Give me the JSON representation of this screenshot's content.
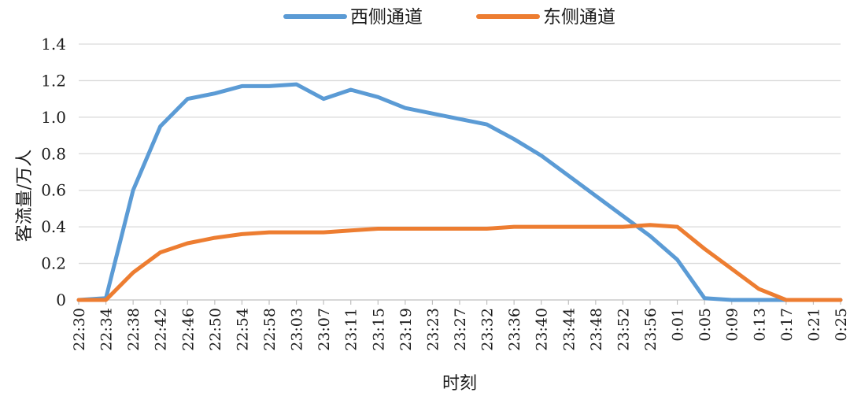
{
  "chart_data": {
    "type": "line",
    "title": "",
    "xlabel": "时刻",
    "ylabel": "客流量/万人",
    "ylim": [
      0,
      1.4
    ],
    "yticks": [
      "0",
      "0.2",
      "0.4",
      "0.6",
      "0.8",
      "1.0",
      "1.2",
      "1.4"
    ],
    "grid": true,
    "legend_position": "top",
    "categories": [
      "22:30",
      "22:34",
      "22:38",
      "22:42",
      "22:46",
      "22:50",
      "22:54",
      "22:58",
      "23:03",
      "23:07",
      "23:11",
      "23:15",
      "23:19",
      "23:23",
      "23:27",
      "23:32",
      "23:36",
      "23:40",
      "23:44",
      "23:48",
      "23:52",
      "23:56",
      "0:01",
      "0:05",
      "0:09",
      "0:13",
      "0:17",
      "0:21",
      "0:25"
    ],
    "series": [
      {
        "name": "西侧通道",
        "color": "#5B9BD5",
        "values": [
          0,
          0.01,
          0.6,
          0.95,
          1.1,
          1.13,
          1.17,
          1.17,
          1.18,
          1.1,
          1.15,
          1.11,
          1.05,
          1.02,
          0.99,
          0.96,
          0.88,
          0.79,
          0.68,
          0.57,
          0.46,
          0.35,
          0.22,
          0.01,
          0,
          0,
          0,
          0,
          0
        ]
      },
      {
        "name": "东侧通道",
        "color": "#ED7D31",
        "values": [
          0,
          0,
          0.15,
          0.26,
          0.31,
          0.34,
          0.36,
          0.37,
          0.37,
          0.37,
          0.38,
          0.39,
          0.39,
          0.39,
          0.39,
          0.39,
          0.4,
          0.4,
          0.4,
          0.4,
          0.4,
          0.41,
          0.4,
          0.28,
          0.17,
          0.06,
          0,
          0,
          0
        ]
      }
    ]
  }
}
